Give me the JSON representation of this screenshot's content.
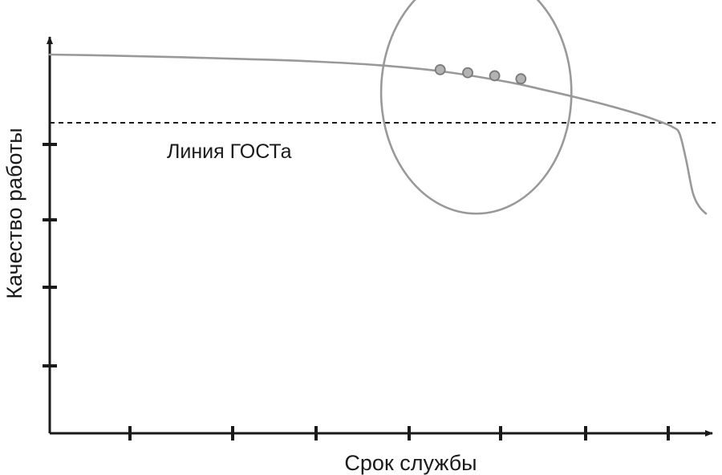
{
  "chart_data": {
    "type": "line",
    "title": "",
    "xlabel": "Срок службы",
    "ylabel": "Качество работы",
    "x_tick_count": 7,
    "y_tick_count": 4,
    "xlim": [
      0,
      1
    ],
    "ylim": [
      0,
      1
    ],
    "grid": false,
    "legend": "none",
    "series": [
      {
        "x": [
          0.0,
          0.1,
          0.2,
          0.3,
          0.4,
          0.5,
          0.6,
          0.7,
          0.75,
          0.8,
          0.85,
          0.9,
          0.93,
          0.95,
          0.96,
          0.97,
          0.98,
          0.99,
          1.0
        ],
        "y": [
          1.0,
          0.997,
          0.993,
          0.988,
          0.982,
          0.972,
          0.955,
          0.927,
          0.908,
          0.888,
          0.866,
          0.841,
          0.823,
          0.808,
          0.79,
          0.72,
          0.635,
          0.598,
          0.58
        ],
        "color": "#999999"
      }
    ],
    "highlight_points": {
      "x": [
        0.595,
        0.637,
        0.678,
        0.718
      ],
      "y": [
        0.96,
        0.952,
        0.944,
        0.936
      ],
      "color": "#b3b3b3"
    },
    "reference_line": {
      "y": 0.82,
      "label": "Линия ГОСТа",
      "style": "dashed",
      "color": "#1a1a1a"
    },
    "highlight_ellipse": {
      "cx": 0.65,
      "cy": 0.9,
      "rx": 0.145,
      "ry": 0.32,
      "color": "#999999"
    }
  }
}
